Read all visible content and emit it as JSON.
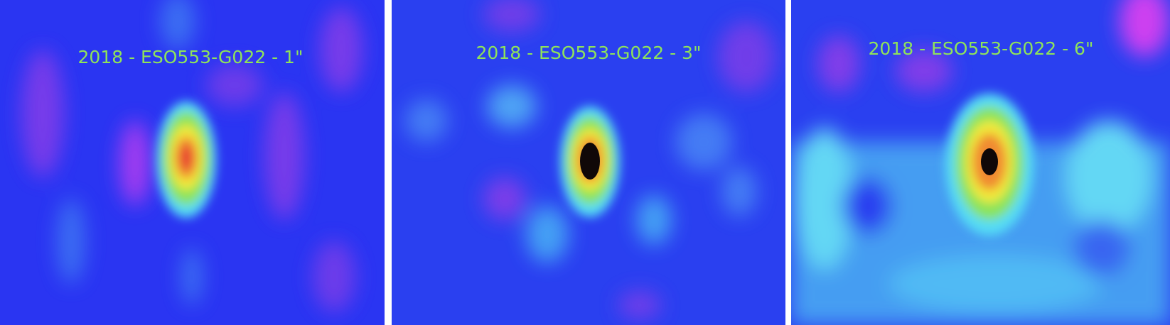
{
  "panels": [
    {
      "label": "2018 - ESO553-G022 - 1\""
    },
    {
      "label": "2018 - ESO553-G022 - 3\""
    },
    {
      "label": "2018 - ESO553-G022 - 6\""
    }
  ]
}
